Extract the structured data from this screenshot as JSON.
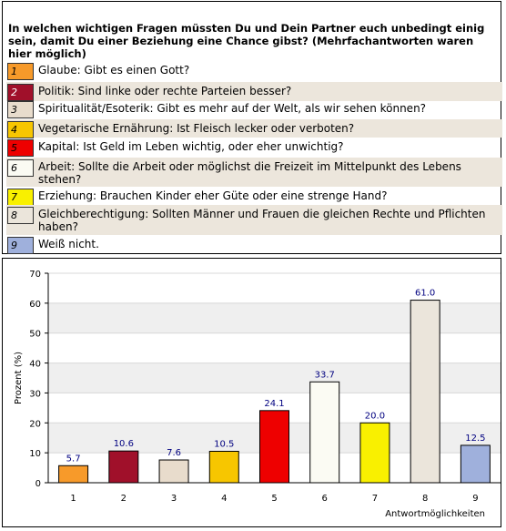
{
  "question": "In welchen wichtigen Fragen müssten Du und Dein Partner euch unbedingt einig sein, damit Du einer Beziehung eine Chance gibst? (Mehrfachantworten waren hier möglich)",
  "legend": [
    {
      "num": "1",
      "text": "Glaube: Gibt es einen Gott?",
      "color": "#f79a2a"
    },
    {
      "num": "2",
      "text": "Politik: Sind linke oder rechte Parteien besser?",
      "color": "#a0102a"
    },
    {
      "num": "3",
      "text": "Spiritualität/Esoterik: Gibt es mehr auf der Welt, als wir sehen können?",
      "color": "#e8dccc"
    },
    {
      "num": "4",
      "text": "Vegetarische Ernährung: Ist Fleisch lecker oder verboten?",
      "color": "#f7c600"
    },
    {
      "num": "5",
      "text": "Kapital: Ist Geld im Leben wichtig, oder eher unwichtig?",
      "color": "#ee0000"
    },
    {
      "num": "6",
      "text": "Arbeit: Sollte die Arbeit oder möglichst die Freizeit im Mittelpunkt des Lebens stehen?",
      "color": "#fbfbf3"
    },
    {
      "num": "7",
      "text": "Erziehung: Brauchen Kinder eher Güte oder eine strenge Hand?",
      "color": "#f9f000"
    },
    {
      "num": "8",
      "text": "Gleichberechtigung: Sollten Männer und Frauen die gleichen Rechte und Pflichten haben?",
      "color": "#ebe5db"
    },
    {
      "num": "9",
      "text": "Weiß nicht.",
      "color": "#9fb0dc"
    }
  ],
  "chart_data": {
    "type": "bar",
    "categories": [
      "1",
      "2",
      "3",
      "4",
      "5",
      "6",
      "7",
      "8",
      "9"
    ],
    "values": [
      5.7,
      10.6,
      7.6,
      10.5,
      24.1,
      33.7,
      20.0,
      61.0,
      12.5
    ],
    "value_labels": [
      "5.7",
      "10.6",
      "7.6",
      "10.5",
      "24.1",
      "33.7",
      "20.0",
      "61.0",
      "12.5"
    ],
    "colors": [
      "#f79a2a",
      "#a0102a",
      "#e8dccc",
      "#f7c600",
      "#ee0000",
      "#fbfbf3",
      "#f9f000",
      "#ebe5db",
      "#9fb0dc"
    ],
    "ylabel": "Prozent (%)",
    "xlabel": "Antwortmöglichkeiten",
    "ylim": [
      0,
      70
    ],
    "yticks": [
      "0",
      "10",
      "20",
      "30",
      "40",
      "50",
      "60",
      "70"
    ],
    "grid": true,
    "band_color": "#efefef",
    "label_color": "#000080"
  }
}
